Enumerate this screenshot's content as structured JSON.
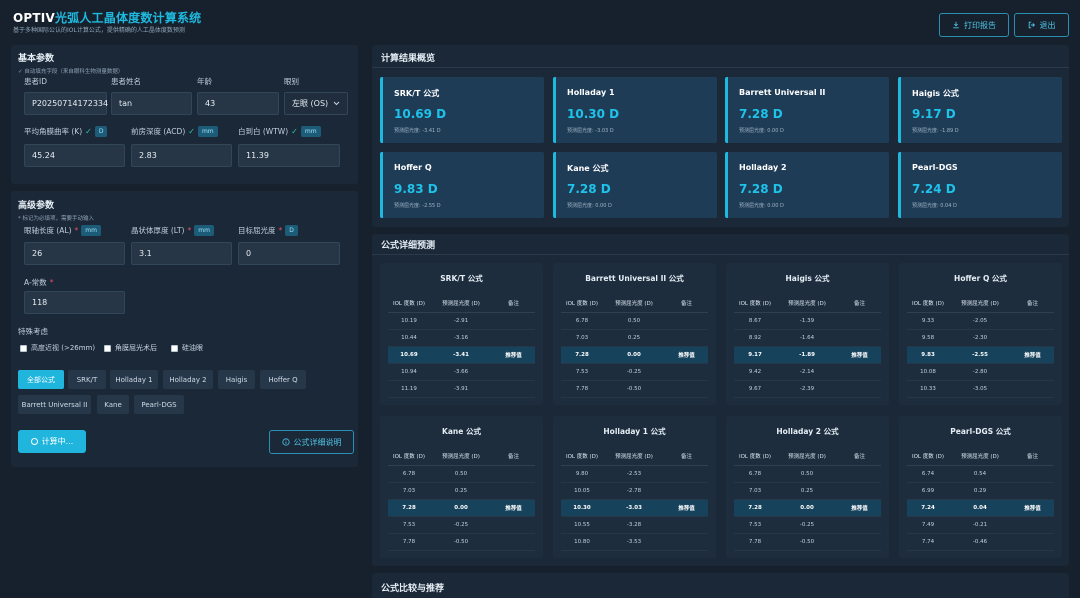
{
  "header": {
    "title_prefix": "OPTIV",
    "title_accent": "光弧",
    "title_rest": "人工晶体度数计算系统",
    "subtitle": "基于多种国际公认的IOL计算公式，提供精确的人工晶体度数预测",
    "print_label": "打印报告",
    "logout_label": "退出"
  },
  "basic": {
    "title": "基本参数",
    "note": "✓ 自动填充字段（来自眼科生物测量数据）",
    "patient_id_label": "患者ID",
    "patient_id_value": "P20250714172334",
    "patient_name_label": "患者姓名",
    "patient_name_value": "tan",
    "age_label": "年龄",
    "age_value": "43",
    "eye_label": "眼别",
    "eye_value": "左眼 (OS)",
    "k_label": "平均角膜曲率 (K)",
    "k_unit": "D",
    "k_value": "45.24",
    "acd_label": "前房深度 (ACD)",
    "acd_unit": "mm",
    "acd_value": "2.83",
    "wtw_label": "白到白 (WTW)",
    "wtw_unit": "mm",
    "wtw_value": "11.39"
  },
  "advanced": {
    "title": "高级参数",
    "note": "* 标记为必填项，需要手动输入",
    "al_label": "眼轴长度 (AL)",
    "al_unit": "mm",
    "al_value": "26",
    "lt_label": "晶状体厚度 (LT)",
    "lt_unit": "mm",
    "lt_value": "3.1",
    "target_label": "目标屈光度",
    "target_unit": "D",
    "target_value": "0",
    "a_label": "A-常数",
    "a_value": "118",
    "special_title": "特殊考虑",
    "special_options": [
      "高度近视 (>26mm)",
      "角膜屈光术后",
      "硅油眼"
    ],
    "formula_buttons": [
      "全部公式",
      "SRK/T",
      "Holladay 1",
      "Holladay 2",
      "Haigis",
      "Hoffer Q",
      "Barrett Universal II",
      "Kane",
      "Pearl-DGS"
    ],
    "calc_label": "计算中...",
    "detail_label": "公式详细说明"
  },
  "summary": {
    "title": "计算结果概览",
    "cards": [
      {
        "name": "SRK/T 公式",
        "value": "10.69 D",
        "sub": "预测屈光度: -3.41 D"
      },
      {
        "name": "Holladay 1",
        "value": "10.30 D",
        "sub": "预测屈光度: -3.03 D"
      },
      {
        "name": "Barrett Universal II",
        "value": "7.28 D",
        "sub": "预测屈光度: 0.00 D"
      },
      {
        "name": "Haigis 公式",
        "value": "9.17 D",
        "sub": "预测屈光度: -1.89 D"
      },
      {
        "name": "Hoffer Q",
        "value": "9.83 D",
        "sub": "预测屈光度: -2.55 D"
      },
      {
        "name": "Kane 公式",
        "value": "7.28 D",
        "sub": "预测屈光度: 0.00 D"
      },
      {
        "name": "Holladay 2",
        "value": "7.28 D",
        "sub": "预测屈光度: 0.00 D"
      },
      {
        "name": "Pearl-DGS",
        "value": "7.24 D",
        "sub": "预测屈光度: 0.04 D"
      }
    ]
  },
  "detail": {
    "title": "公式详细预测",
    "columns": [
      "IOL 度数 (D)",
      "预测屈光度 (D)",
      "备注"
    ],
    "recommend": "推荐值",
    "tables": [
      {
        "name": "SRK/T 公式",
        "rows": [
          [
            "10.19",
            "-2.91"
          ],
          [
            "10.44",
            "-3.16"
          ],
          [
            "10.69",
            "-3.41"
          ],
          [
            "10.94",
            "-3.66"
          ],
          [
            "11.19",
            "-3.91"
          ]
        ]
      },
      {
        "name": "Barrett Universal II 公式",
        "rows": [
          [
            "6.78",
            "0.50"
          ],
          [
            "7.03",
            "0.25"
          ],
          [
            "7.28",
            "0.00"
          ],
          [
            "7.53",
            "-0.25"
          ],
          [
            "7.78",
            "-0.50"
          ]
        ]
      },
      {
        "name": "Haigis 公式",
        "rows": [
          [
            "8.67",
            "-1.39"
          ],
          [
            "8.92",
            "-1.64"
          ],
          [
            "9.17",
            "-1.89"
          ],
          [
            "9.42",
            "-2.14"
          ],
          [
            "9.67",
            "-2.39"
          ]
        ]
      },
      {
        "name": "Hoffer Q 公式",
        "rows": [
          [
            "9.33",
            "-2.05"
          ],
          [
            "9.58",
            "-2.30"
          ],
          [
            "9.83",
            "-2.55"
          ],
          [
            "10.08",
            "-2.80"
          ],
          [
            "10.33",
            "-3.05"
          ]
        ]
      },
      {
        "name": "Kane 公式",
        "rows": [
          [
            "6.78",
            "0.50"
          ],
          [
            "7.03",
            "0.25"
          ],
          [
            "7.28",
            "0.00"
          ],
          [
            "7.53",
            "-0.25"
          ],
          [
            "7.78",
            "-0.50"
          ]
        ]
      },
      {
        "name": "Holladay 1 公式",
        "rows": [
          [
            "9.80",
            "-2.53"
          ],
          [
            "10.05",
            "-2.78"
          ],
          [
            "10.30",
            "-3.03"
          ],
          [
            "10.55",
            "-3.28"
          ],
          [
            "10.80",
            "-3.53"
          ]
        ]
      },
      {
        "name": "Holladay 2 公式",
        "rows": [
          [
            "6.78",
            "0.50"
          ],
          [
            "7.03",
            "0.25"
          ],
          [
            "7.28",
            "0.00"
          ],
          [
            "7.53",
            "-0.25"
          ],
          [
            "7.78",
            "-0.50"
          ]
        ]
      },
      {
        "name": "Pearl-DGS 公式",
        "rows": [
          [
            "6.74",
            "0.54"
          ],
          [
            "6.99",
            "0.29"
          ],
          [
            "7.24",
            "0.04"
          ],
          [
            "7.49",
            "-0.21"
          ],
          [
            "7.74",
            "-0.46"
          ]
        ]
      }
    ]
  },
  "compare": {
    "title": "公式比较与推荐"
  },
  "colors": {
    "accent": "#1fb8de",
    "bg": "#16212d",
    "panel": "#1b2838",
    "card": "#1f3c57",
    "required": "#e0516a"
  }
}
